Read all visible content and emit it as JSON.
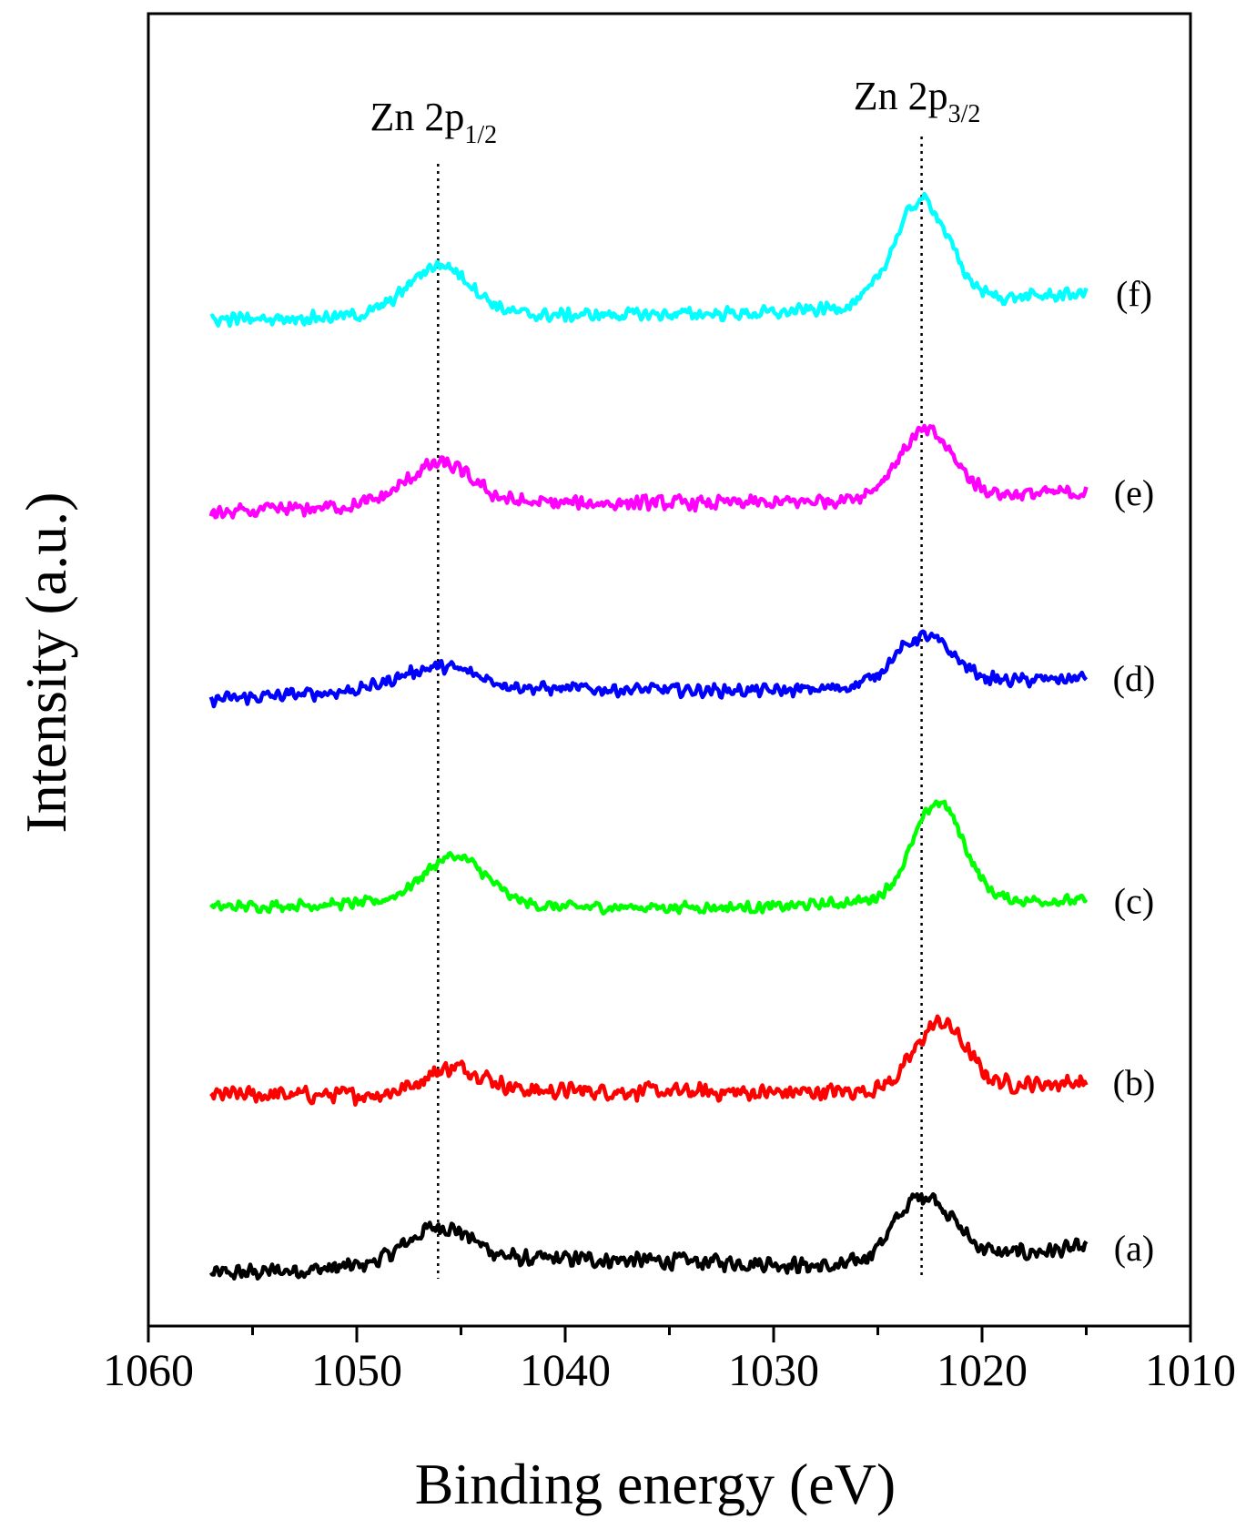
{
  "chart_data": {
    "type": "line",
    "title": "",
    "xlabel": "Binding energy  (eV)",
    "ylabel": "Intensity (a.u.)",
    "xlim": [
      1060,
      1010
    ],
    "x_reversed": true,
    "xticks": [
      1060,
      1050,
      1040,
      1030,
      1020,
      1010
    ],
    "x_minor_step": 5,
    "y_ticks_shown": false,
    "grid": false,
    "x_range_of_data": [
      1057,
      1015
    ],
    "reference_lines": [
      {
        "x": 1046.1,
        "label_main": "Zn 2p",
        "label_sub": "1/2",
        "style": "dotted"
      },
      {
        "x": 1022.9,
        "label_main": "Zn 2p",
        "label_sub": "3/2",
        "style": "dotted"
      }
    ],
    "series": [
      {
        "name": "(a)",
        "color": "#000000",
        "offset": 0.0,
        "noise": 0.045,
        "baseline": [
          [
            1057,
            0.0
          ],
          [
            1048,
            0.04
          ],
          [
            1040,
            0.07
          ],
          [
            1030,
            0.05
          ],
          [
            1027,
            0.03
          ],
          [
            1015,
            0.12
          ]
        ],
        "peaks": [
          {
            "center": 1046.0,
            "height": 0.17,
            "width": 1.6
          },
          {
            "center": 1022.8,
            "height": 0.3,
            "width": 1.4
          }
        ]
      },
      {
        "name": "(b)",
        "color": "#ff0000",
        "offset": 0.82,
        "noise": 0.045,
        "baseline": [
          [
            1057,
            0.0
          ],
          [
            1048,
            0.0
          ],
          [
            1040,
            0.02
          ],
          [
            1030,
            0.01
          ],
          [
            1025,
            0.02
          ],
          [
            1015,
            0.06
          ]
        ],
        "peaks": [
          {
            "center": 1045.3,
            "height": 0.12,
            "width": 1.5
          },
          {
            "center": 1022.0,
            "height": 0.3,
            "width": 1.2
          }
        ]
      },
      {
        "name": "(c)",
        "color": "#00ff00",
        "offset": 1.68,
        "noise": 0.03,
        "baseline": [
          [
            1057,
            0.0
          ],
          [
            1048,
            0.02
          ],
          [
            1040,
            0.0
          ],
          [
            1030,
            0.0
          ],
          [
            1025,
            0.03
          ],
          [
            1015,
            0.03
          ]
        ],
        "peaks": [
          {
            "center": 1045.3,
            "height": 0.22,
            "width": 1.5
          },
          {
            "center": 1022.1,
            "height": 0.45,
            "width": 1.2
          }
        ]
      },
      {
        "name": "(d)",
        "color": "#0000ff",
        "offset": 2.63,
        "noise": 0.035,
        "baseline": [
          [
            1057,
            0.0
          ],
          [
            1048,
            0.05
          ],
          [
            1040,
            0.05
          ],
          [
            1030,
            0.04
          ],
          [
            1025,
            0.06
          ],
          [
            1015,
            0.1
          ]
        ],
        "peaks": [
          {
            "center": 1046.0,
            "height": 0.1,
            "width": 1.8
          },
          {
            "center": 1022.8,
            "height": 0.22,
            "width": 1.4
          }
        ]
      },
      {
        "name": "(e)",
        "color": "#ff00ff",
        "offset": 3.48,
        "noise": 0.04,
        "baseline": [
          [
            1057,
            0.0
          ],
          [
            1048,
            0.05
          ],
          [
            1040,
            0.05
          ],
          [
            1030,
            0.05
          ],
          [
            1026,
            0.07
          ],
          [
            1015,
            0.1
          ]
        ],
        "peaks": [
          {
            "center": 1046.0,
            "height": 0.18,
            "width": 1.5
          },
          {
            "center": 1022.7,
            "height": 0.3,
            "width": 1.3
          }
        ]
      },
      {
        "name": "(f)",
        "color": "#00ffff",
        "offset": 4.37,
        "noise": 0.035,
        "baseline": [
          [
            1057,
            0.0
          ],
          [
            1048,
            0.02
          ],
          [
            1040,
            0.02
          ],
          [
            1030,
            0.03
          ],
          [
            1026,
            0.06
          ],
          [
            1015,
            0.12
          ]
        ],
        "peaks": [
          {
            "center": 1046.0,
            "height": 0.23,
            "width": 1.5
          },
          {
            "center": 1022.9,
            "height": 0.47,
            "width": 1.3
          }
        ]
      }
    ]
  }
}
